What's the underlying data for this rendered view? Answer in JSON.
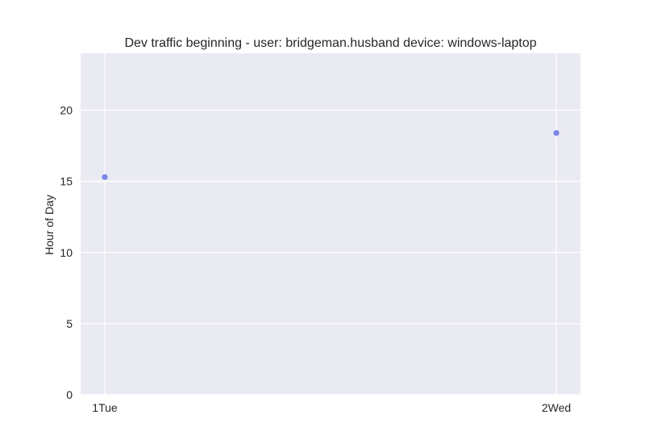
{
  "chart_data": {
    "type": "scatter",
    "title": "Dev traffic beginning - user: bridgeman.husband device: windows-laptop",
    "xlabel": "",
    "ylabel": "Hour of Day",
    "x_categories": [
      "1Tue",
      "2Wed"
    ],
    "series": [
      {
        "x": [
          "1Tue",
          "2Wed"
        ],
        "y": [
          15.3,
          18.4
        ],
        "color": "#6f79e8"
      }
    ],
    "ylim": [
      0,
      24
    ],
    "y_ticks": [
      0,
      5,
      10,
      15,
      20
    ],
    "grid": true,
    "colors": {
      "plot_background": "#eaeaf2",
      "grid": "#ffffff",
      "marker": "#6f79e8",
      "text": "#262626"
    }
  }
}
